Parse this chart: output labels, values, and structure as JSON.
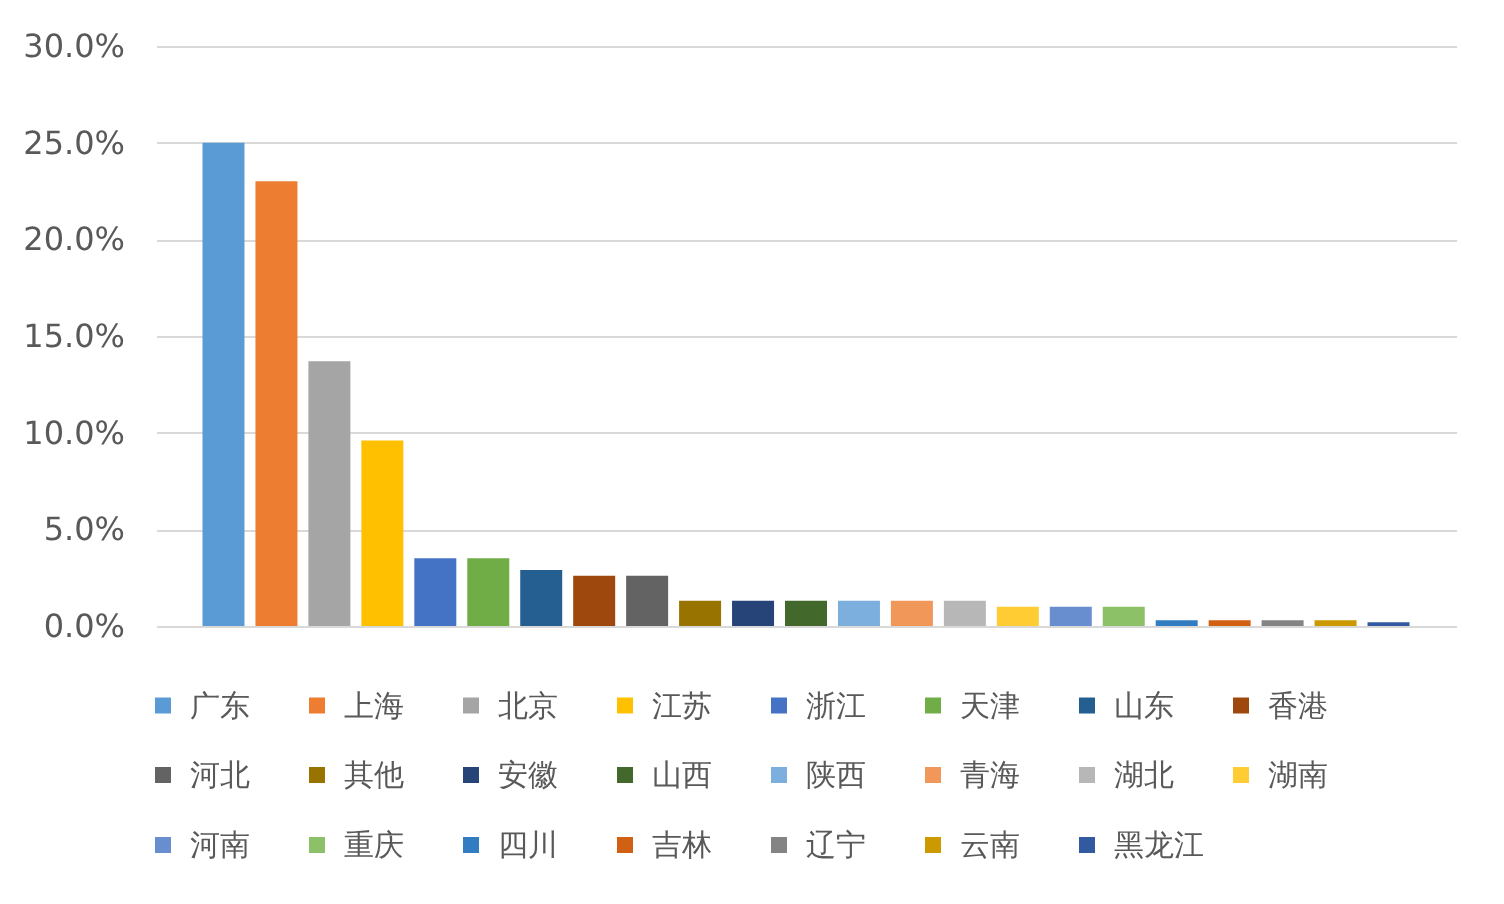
{
  "chart_data": {
    "type": "bar",
    "categories": [
      null
    ],
    "series": [
      {
        "name": "广东",
        "color": "#5b9bd5",
        "values": [
          25.0
        ]
      },
      {
        "name": "上海",
        "color": "#ed7d31",
        "values": [
          23.0
        ]
      },
      {
        "name": "北京",
        "color": "#a5a5a5",
        "values": [
          13.7
        ]
      },
      {
        "name": "江苏",
        "color": "#ffc000",
        "values": [
          9.6
        ]
      },
      {
        "name": "浙江",
        "color": "#4472c4",
        "values": [
          3.5
        ]
      },
      {
        "name": "天津",
        "color": "#70ad47",
        "values": [
          3.5
        ]
      },
      {
        "name": "山东",
        "color": "#255e91",
        "values": [
          2.9
        ]
      },
      {
        "name": "香港",
        "color": "#9e480e",
        "values": [
          2.6
        ]
      },
      {
        "name": "河北",
        "color": "#636363",
        "values": [
          2.6
        ]
      },
      {
        "name": "其他",
        "color": "#997300",
        "values": [
          1.3
        ]
      },
      {
        "name": "安徽",
        "color": "#264478",
        "values": [
          1.3
        ]
      },
      {
        "name": "山西",
        "color": "#43682b",
        "values": [
          1.3
        ]
      },
      {
        "name": "陕西",
        "color": "#7cafdd",
        "values": [
          1.3
        ]
      },
      {
        "name": "青海",
        "color": "#f1975a",
        "values": [
          1.3
        ]
      },
      {
        "name": "湖北",
        "color": "#b7b7b7",
        "values": [
          1.3
        ]
      },
      {
        "name": "湖南",
        "color": "#ffcd33",
        "values": [
          1.0
        ]
      },
      {
        "name": "河南",
        "color": "#698ed0",
        "values": [
          1.0
        ]
      },
      {
        "name": "重庆",
        "color": "#8cc168",
        "values": [
          1.0
        ]
      },
      {
        "name": "四川",
        "color": "#327dc2",
        "values": [
          0.3
        ]
      },
      {
        "name": "吉林",
        "color": "#d26012",
        "values": [
          0.3
        ]
      },
      {
        "name": "辽宁",
        "color": "#848484",
        "values": [
          0.3
        ]
      },
      {
        "name": "云南",
        "color": "#cc9a00",
        "values": [
          0.3
        ]
      },
      {
        "name": "黑龙江",
        "color": "#335aa1",
        "values": [
          0.2
        ]
      }
    ],
    "ylim": [
      0,
      30
    ],
    "yticks": [
      {
        "value": 0,
        "label": "0.0%"
      },
      {
        "value": 5,
        "label": "5.0%"
      },
      {
        "value": 10,
        "label": "10.0%"
      },
      {
        "value": 15,
        "label": "15.0%"
      },
      {
        "value": 20,
        "label": "20.0%"
      },
      {
        "value": 25,
        "label": "25.0%"
      },
      {
        "value": 30,
        "label": "30.0%"
      }
    ],
    "grid": "y",
    "legend": "bottom"
  }
}
